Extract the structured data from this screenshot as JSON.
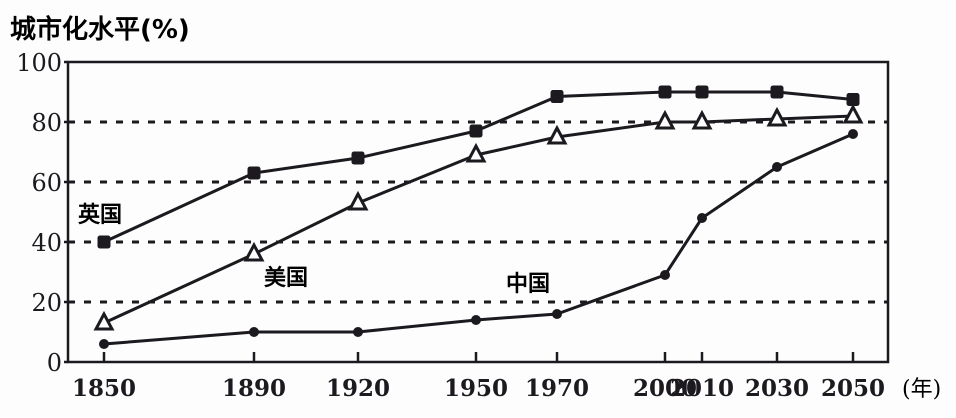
{
  "chart_data": {
    "type": "line",
    "title": "城市化水平(%)",
    "ylabel": "城市化水平(%)",
    "xlabel": "(年)",
    "ylim": [
      0,
      100
    ],
    "yticks": [
      0,
      20,
      40,
      60,
      80,
      100
    ],
    "grid": "horizontal dashed at 20, 40, 60, 80",
    "categories": [
      "1850",
      "1890",
      "1920",
      "1950",
      "1970",
      "2000",
      "2010",
      "2030",
      "2050"
    ],
    "x": [
      1850,
      1890,
      1920,
      1950,
      1970,
      2000,
      2010,
      2030,
      2050
    ],
    "series": [
      {
        "name": "英国",
        "marker": "filled-square",
        "values": [
          40,
          63,
          68,
          77,
          88.5,
          90,
          90,
          90,
          87.5
        ]
      },
      {
        "name": "美国",
        "marker": "open-triangle",
        "values": [
          13,
          36,
          53,
          69,
          75,
          80,
          80,
          81,
          82
        ]
      },
      {
        "name": "中国",
        "marker": "filled-dot",
        "values": [
          6,
          10,
          10,
          14,
          16,
          29,
          48,
          65,
          76
        ]
      }
    ],
    "annotations": [
      {
        "text": "英国",
        "near": "1850, 45"
      },
      {
        "text": "美国",
        "near": "1900, 28"
      },
      {
        "text": "中国",
        "near": "1990, 26"
      }
    ],
    "legend": "inline labels next to lines"
  },
  "labels": {
    "y_axis_title": "城市化水平(%)",
    "x_axis_unit": "(年)",
    "uk": "英国",
    "usa": "美国",
    "china": "中国"
  }
}
